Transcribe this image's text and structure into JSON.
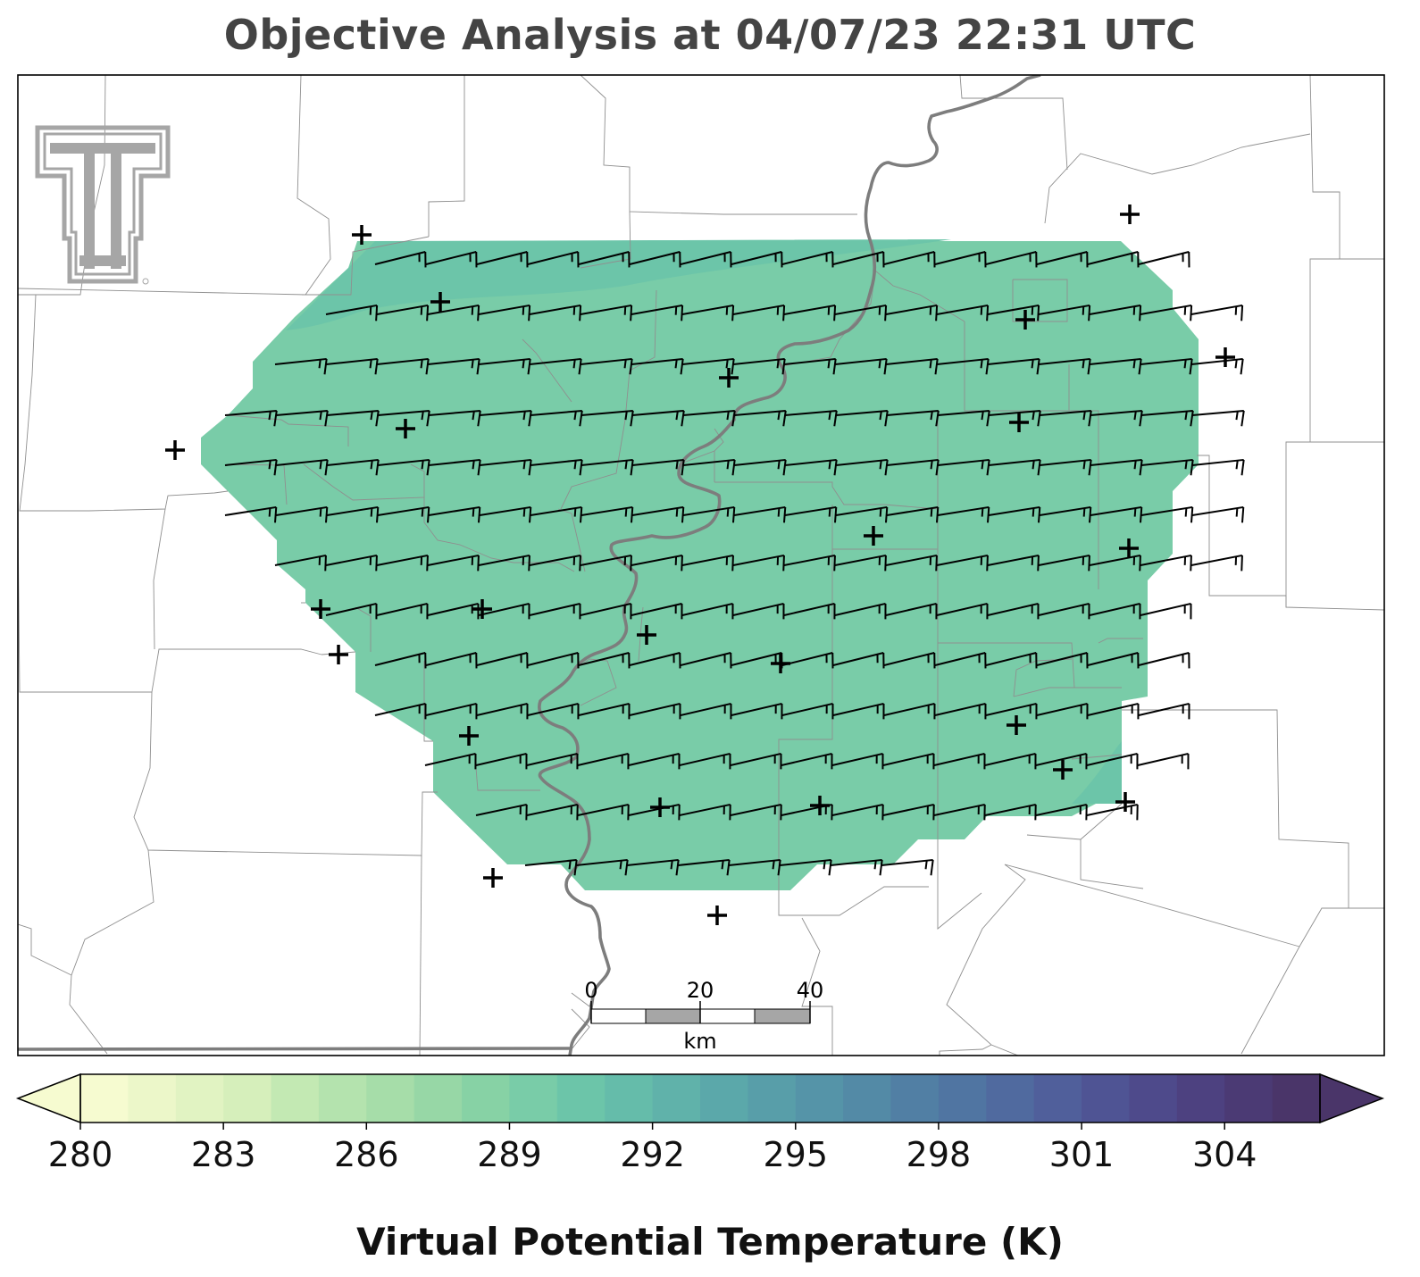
{
  "title": "Objective Analysis at 04/07/23 22:31 UTC",
  "colorbar": {
    "label": "Virtual Potential Temperature (K)",
    "min": 280,
    "max": 306,
    "step": 1,
    "ticks": [
      "280",
      "283",
      "286",
      "289",
      "292",
      "295",
      "298",
      "301",
      "304"
    ],
    "extend": "both",
    "colors": [
      "#f6fbd0",
      "#ecf7c9",
      "#e1f3c2",
      "#d6efbb",
      "#c3e9b3",
      "#b4e3ae",
      "#a6dda9",
      "#97d7a6",
      "#87d2a5",
      "#79cca8",
      "#6cc5a9",
      "#65bcaa",
      "#60b2aa",
      "#5ba8aa",
      "#589ea9",
      "#5594a8",
      "#538aa6",
      "#517fa4",
      "#5075a2",
      "#506a9f",
      "#505f9b",
      "#4f5494",
      "#4e4a8b",
      "#4d4180",
      "#4b3a74",
      "#4a3569"
    ]
  },
  "analysis_field": {
    "variable": "virtual potential temperature",
    "dominant_value_K": 288.5,
    "fill": "#79cca8",
    "ridge_value_K": 289.5,
    "ridge_fill": "#6cc5a9"
  },
  "scale_bar": {
    "labels": [
      "0",
      "20",
      "40"
    ],
    "unit": "km"
  },
  "logo": {
    "name": "texas-tech-double-t",
    "color": "#a6a6a6"
  },
  "wind_barbs": {
    "direction": "westerly",
    "typical_speed": "25 kt"
  },
  "stations": 28
}
